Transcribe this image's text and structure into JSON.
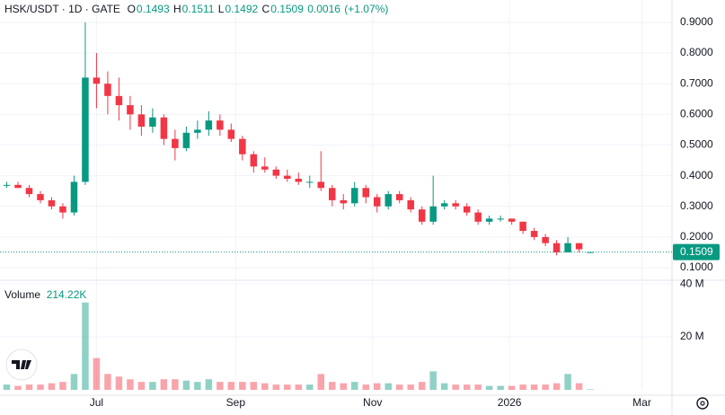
{
  "chart_data": {
    "type": "candlestick",
    "title": "HSK/USDT · 1D · GATE",
    "ohlc_labels": [
      "O",
      "H",
      "L",
      "C"
    ],
    "change": 0.0016,
    "change_percent": {
      "value": 1.07,
      "label": "(+1.07%)"
    },
    "up_color": "#089981",
    "down_color": "#f23645",
    "x": [
      -40,
      -35,
      -30,
      -25,
      -20,
      -15,
      -10,
      -5,
      0,
      5,
      10,
      15,
      20,
      25,
      30,
      35,
      40,
      45,
      50,
      55,
      60,
      65,
      70,
      75,
      80,
      85,
      90,
      95,
      100,
      105,
      110,
      115,
      120,
      125,
      130,
      135,
      140,
      145,
      150,
      155,
      160,
      165,
      170,
      175,
      180,
      185,
      190,
      195,
      200,
      205,
      210,
      215,
      220
    ],
    "open": [
      0.37,
      0.37,
      0.36,
      0.34,
      0.32,
      0.3,
      0.28,
      0.38,
      0.72,
      0.7,
      0.66,
      0.63,
      0.6,
      0.56,
      0.59,
      0.52,
      0.49,
      0.54,
      0.55,
      0.58,
      0.55,
      0.52,
      0.47,
      0.43,
      0.42,
      0.4,
      0.39,
      0.38,
      0.38,
      0.36,
      0.32,
      0.31,
      0.36,
      0.33,
      0.3,
      0.34,
      0.32,
      0.29,
      0.25,
      0.3,
      0.31,
      0.3,
      0.28,
      0.25,
      0.26,
      0.26,
      0.25,
      0.22,
      0.2,
      0.18,
      0.15,
      0.18,
      0.1493
    ],
    "high": [
      0.38,
      0.38,
      0.37,
      0.35,
      0.33,
      0.31,
      0.4,
      0.9,
      0.8,
      0.74,
      0.72,
      0.66,
      0.63,
      0.62,
      0.6,
      0.55,
      0.56,
      0.58,
      0.61,
      0.6,
      0.57,
      0.53,
      0.48,
      0.46,
      0.43,
      0.42,
      0.41,
      0.4,
      0.48,
      0.37,
      0.34,
      0.38,
      0.37,
      0.34,
      0.35,
      0.35,
      0.33,
      0.3,
      0.4,
      0.32,
      0.32,
      0.31,
      0.29,
      0.27,
      0.27,
      0.26,
      0.25,
      0.23,
      0.21,
      0.19,
      0.2,
      0.18,
      0.1511
    ],
    "low": [
      0.36,
      0.36,
      0.33,
      0.31,
      0.29,
      0.26,
      0.27,
      0.37,
      0.62,
      0.6,
      0.58,
      0.55,
      0.53,
      0.54,
      0.5,
      0.45,
      0.48,
      0.52,
      0.53,
      0.53,
      0.51,
      0.45,
      0.41,
      0.41,
      0.39,
      0.38,
      0.37,
      0.36,
      0.35,
      0.3,
      0.29,
      0.3,
      0.31,
      0.28,
      0.29,
      0.31,
      0.28,
      0.24,
      0.24,
      0.29,
      0.29,
      0.27,
      0.24,
      0.24,
      0.25,
      0.24,
      0.21,
      0.19,
      0.17,
      0.14,
      0.15,
      0.15,
      0.1492
    ],
    "close": [
      0.37,
      0.36,
      0.34,
      0.32,
      0.3,
      0.28,
      0.38,
      0.72,
      0.7,
      0.66,
      0.63,
      0.6,
      0.56,
      0.59,
      0.52,
      0.49,
      0.54,
      0.55,
      0.58,
      0.55,
      0.52,
      0.47,
      0.43,
      0.42,
      0.4,
      0.39,
      0.38,
      0.38,
      0.36,
      0.32,
      0.31,
      0.36,
      0.33,
      0.3,
      0.34,
      0.32,
      0.29,
      0.25,
      0.3,
      0.31,
      0.3,
      0.28,
      0.25,
      0.26,
      0.26,
      0.25,
      0.22,
      0.2,
      0.18,
      0.15,
      0.18,
      0.16,
      0.1509
    ],
    "xlim": [
      -43,
      256.4
    ],
    "xticks": [
      {
        "value": 0,
        "label": "Jul"
      },
      {
        "value": 62,
        "label": "Sep"
      },
      {
        "value": 123,
        "label": "Nov"
      },
      {
        "value": 184,
        "label": "2026"
      },
      {
        "value": 243,
        "label": "Mar"
      }
    ],
    "ylim": [
      0.059,
      0.973
    ],
    "yticks": [
      {
        "value": 0.1,
        "label": "0.1000"
      },
      {
        "value": 0.2,
        "label": "0.2000"
      },
      {
        "value": 0.3,
        "label": "0.3000"
      },
      {
        "value": 0.4,
        "label": "0.4000"
      },
      {
        "value": 0.5,
        "label": "0.5000"
      },
      {
        "value": 0.6,
        "label": "0.6000"
      },
      {
        "value": 0.7,
        "label": "0.7000"
      },
      {
        "value": 0.8,
        "label": "0.8000"
      },
      {
        "value": 0.9,
        "label": "0.9000"
      }
    ],
    "volume": {
      "name": "Volume",
      "values": [
        2000000,
        1500000,
        2000000,
        2000000,
        2500000,
        3000000,
        6000000,
        33000000,
        12000000,
        6000000,
        5000000,
        4000000,
        3000000,
        3000000,
        4000000,
        4000000,
        3500000,
        3000000,
        4000000,
        3000000,
        3000000,
        3000000,
        3000000,
        2500000,
        2000000,
        2000000,
        2000000,
        2000000,
        6000000,
        3000000,
        2500000,
        3000000,
        2000000,
        2500000,
        2500000,
        2000000,
        2000000,
        3000000,
        7000000,
        2500000,
        2000000,
        2000000,
        2000000,
        1500000,
        1500000,
        1500000,
        2000000,
        2000000,
        2000000,
        2500000,
        6000000,
        2500000,
        214220
      ],
      "value_labels": [
        null,
        null,
        null,
        null,
        null,
        null,
        null,
        null,
        null,
        null,
        null,
        null,
        null,
        null,
        null,
        null,
        null,
        null,
        null,
        null,
        null,
        null,
        null,
        null,
        null,
        null,
        null,
        null,
        null,
        null,
        null,
        null,
        null,
        null,
        null,
        null,
        null,
        null,
        null,
        null,
        null,
        null,
        null,
        null,
        null,
        null,
        null,
        null,
        null,
        null,
        null,
        null,
        "214.22K"
      ],
      "ylim": [
        0,
        41400000
      ],
      "yticks": [
        {
          "value": 20000000,
          "label": "20 M"
        },
        {
          "value": 40000000,
          "label": "40 M"
        }
      ]
    }
  }
}
